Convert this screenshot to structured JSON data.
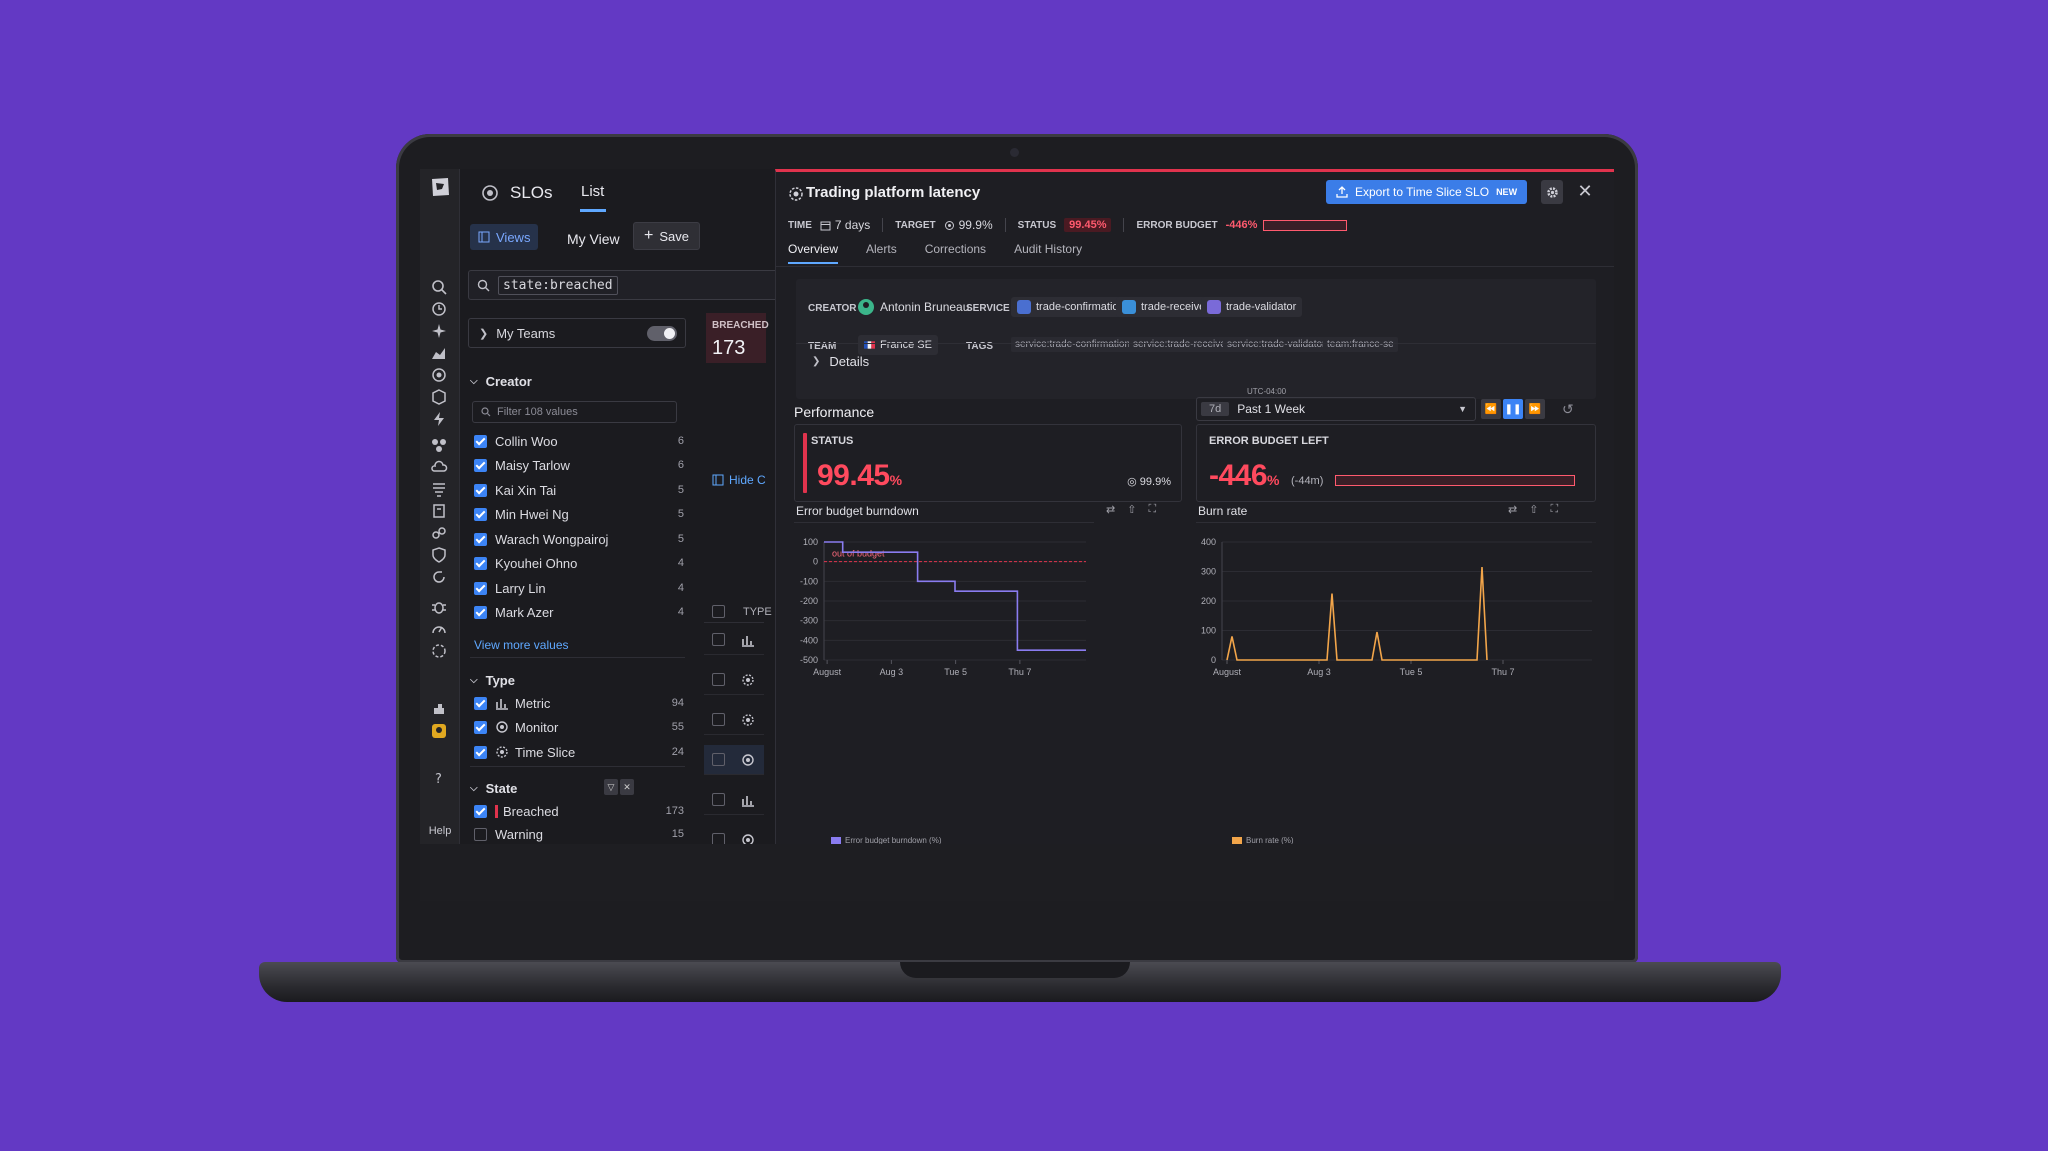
{
  "app": {
    "title": "SLOs",
    "tab": "List"
  },
  "toolbar": {
    "views_label": "Views",
    "view_name": "My View",
    "save_label": "Save"
  },
  "search": {
    "query": "state:breached"
  },
  "my_teams": {
    "label": "My Teams",
    "enabled": false
  },
  "creator": {
    "heading": "Creator",
    "filter_placeholder": "Filter 108 values",
    "items": [
      {
        "name": "Collin Woo",
        "count": "6"
      },
      {
        "name": "Maisy Tarlow",
        "count": "6"
      },
      {
        "name": "Kai Xin Tai",
        "count": "5"
      },
      {
        "name": "Min Hwei Ng",
        "count": "5"
      },
      {
        "name": "Warach Wongpairoj",
        "count": "5"
      },
      {
        "name": "Kyouhei Ohno",
        "count": "4"
      },
      {
        "name": "Larry Lin",
        "count": "4"
      },
      {
        "name": "Mark Azer",
        "count": "4"
      }
    ],
    "view_more": "View more values"
  },
  "type": {
    "heading": "Type",
    "items": [
      {
        "name": "Metric",
        "count": "94"
      },
      {
        "name": "Monitor",
        "count": "55"
      },
      {
        "name": "Time Slice",
        "count": "24"
      }
    ]
  },
  "state": {
    "heading": "State",
    "items": [
      {
        "name": "Breached",
        "count": "173"
      },
      {
        "name": "Warning",
        "count": "15"
      }
    ]
  },
  "list": {
    "breached_label": "BREACHED",
    "breached_count": "173",
    "hide_label": "Hide C",
    "type_header": "TYPE"
  },
  "nav": {
    "help_label": "Help"
  },
  "detail": {
    "title": "Trading platform latency",
    "export_label": "Export to Time Slice SLO",
    "export_badge": "NEW",
    "meta": {
      "time_label": "TIME",
      "time_value": "7 days",
      "target_label": "TARGET",
      "target_value": "99.9%",
      "status_label": "STATUS",
      "status_value": "99.45%",
      "budget_label": "ERROR BUDGET",
      "budget_value": "-446%"
    },
    "tabs": [
      "Overview",
      "Alerts",
      "Corrections",
      "Audit History"
    ],
    "info": {
      "creator_label": "CREATOR",
      "creator": "Antonin Bruneau",
      "service_label": "SERVICE",
      "services": [
        "trade-confirmation",
        "trade-receiver",
        "trade-validator"
      ],
      "team_label": "TEAM",
      "team": "France SE",
      "tags_label": "TAGS",
      "tags": [
        "service:trade-confirmation",
        "service:trade-receiver",
        "service:trade-validator",
        "team:france-se"
      ]
    },
    "details_label": "Details",
    "performance": {
      "title": "Performance",
      "timezone": "UTC-04:00",
      "range_short": "7d",
      "range_label": "Past 1 Week",
      "status_label": "STATUS",
      "status_value": "99.45",
      "status_unit": "%",
      "target": "99.9%",
      "budget_label": "ERROR BUDGET LEFT",
      "budget_value": "-446",
      "budget_unit": "%",
      "budget_delta": "(-44m)"
    },
    "colors": {
      "breach": "#e0334d",
      "burndown": "#8a7cf0",
      "burnrate": "#f2a54a",
      "accent": "#3c84f5"
    }
  },
  "chart_data": [
    {
      "type": "line",
      "title": "Error budget burndown",
      "x_ticks": [
        "August",
        "Aug 3",
        "Tue 5",
        "Thu 7"
      ],
      "y_ticks": [
        100,
        0,
        -100,
        -200,
        -300,
        -400,
        -500
      ],
      "ylim": [
        -500,
        100
      ],
      "annotation": "out of budget",
      "series": [
        {
          "name": "Error budget burndown (%)",
          "color": "#8a7cf0",
          "points": [
            [
              0,
              100
            ],
            [
              0.3,
              100
            ],
            [
              0.3,
              48
            ],
            [
              1.1,
              48
            ],
            [
              1.1,
              48
            ],
            [
              1.5,
              48
            ],
            [
              1.5,
              -100
            ],
            [
              2.1,
              -100
            ],
            [
              2.1,
              -150
            ],
            [
              3.1,
              -150
            ],
            [
              3.1,
              -450
            ],
            [
              4.2,
              -450
            ]
          ]
        }
      ],
      "xlim": [
        0,
        4.2
      ]
    },
    {
      "type": "line",
      "title": "Burn rate",
      "x_ticks": [
        "August",
        "Aug 3",
        "Tue 5",
        "Thu 7"
      ],
      "y_ticks": [
        400,
        300,
        200,
        100,
        0
      ],
      "ylim": [
        0,
        400
      ],
      "series": [
        {
          "name": "Burn rate (%)",
          "color": "#f2a54a",
          "points": [
            [
              0.05,
              0
            ],
            [
              0.1,
              80
            ],
            [
              0.15,
              0
            ],
            [
              1.05,
              0
            ],
            [
              1.1,
              225
            ],
            [
              1.15,
              0
            ],
            [
              1.5,
              0
            ],
            [
              1.55,
              95
            ],
            [
              1.6,
              0
            ],
            [
              2.55,
              0
            ],
            [
              2.6,
              315
            ],
            [
              2.65,
              0
            ]
          ]
        }
      ],
      "xlim": [
        0,
        3.7
      ]
    }
  ]
}
